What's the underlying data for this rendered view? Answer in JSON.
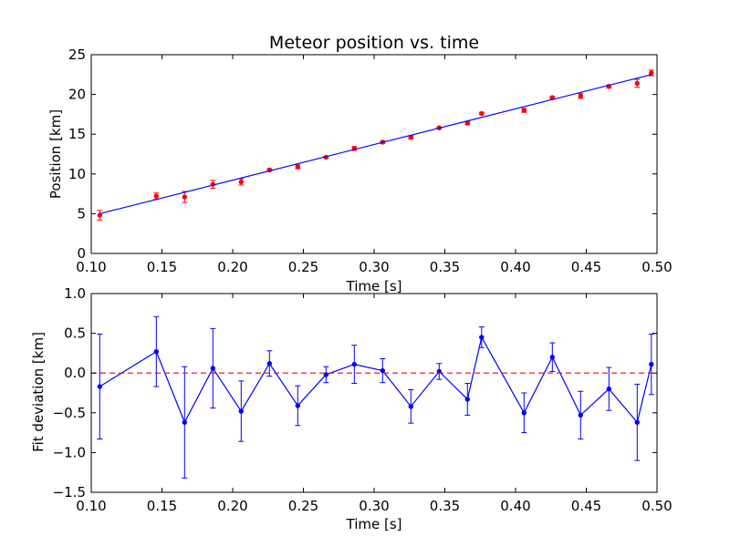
{
  "chart_data": [
    {
      "type": "scatter",
      "title": "Meteor position vs. time",
      "xlabel": "Time [s]",
      "ylabel": "Position [km]",
      "xlim": [
        0.1,
        0.5
      ],
      "ylim": [
        0,
        25
      ],
      "xticks": [
        "0.10",
        "0.15",
        "0.20",
        "0.25",
        "0.30",
        "0.35",
        "0.40",
        "0.45",
        "0.50"
      ],
      "yticks": [
        "0",
        "5",
        "10",
        "15",
        "20",
        "25"
      ],
      "grid": false,
      "series": [
        {
          "kind": "errorbar-points",
          "color": "#ff0000",
          "x": [
            0.106,
            0.146,
            0.166,
            0.186,
            0.206,
            0.226,
            0.246,
            0.266,
            0.286,
            0.306,
            0.326,
            0.346,
            0.366,
            0.376,
            0.406,
            0.426,
            0.446,
            0.466,
            0.486,
            0.496
          ],
          "y": [
            4.8,
            7.2,
            7.1,
            8.7,
            9.0,
            10.5,
            10.9,
            12.1,
            13.2,
            14.0,
            14.6,
            15.8,
            16.4,
            17.6,
            18.0,
            19.6,
            19.8,
            21.0,
            21.4,
            22.7
          ],
          "yerr": [
            0.6,
            0.4,
            0.7,
            0.5,
            0.4,
            0.15,
            0.25,
            0.1,
            0.25,
            0.15,
            0.2,
            0.1,
            0.2,
            0.15,
            0.25,
            0.15,
            0.3,
            0.2,
            0.5,
            0.35
          ]
        },
        {
          "kind": "fit-line",
          "color": "#0000ff",
          "x": [
            0.106,
            0.496
          ],
          "y": [
            5.0,
            22.5
          ]
        }
      ]
    },
    {
      "type": "line",
      "xlabel": "Time [s]",
      "ylabel": "Fit deviation [km]",
      "xlim": [
        0.1,
        0.5
      ],
      "ylim": [
        -1.5,
        1.0
      ],
      "xticks": [
        "0.10",
        "0.15",
        "0.20",
        "0.25",
        "0.30",
        "0.35",
        "0.40",
        "0.45",
        "0.50"
      ],
      "yticks": [
        "1.0",
        "0.5",
        "0.0",
        "−0.5",
        "−1.0",
        "−1.5"
      ],
      "grid": false,
      "series": [
        {
          "kind": "errorbar-line",
          "color": "#0000ff",
          "x": [
            0.106,
            0.146,
            0.166,
            0.186,
            0.206,
            0.226,
            0.246,
            0.266,
            0.286,
            0.306,
            0.326,
            0.346,
            0.366,
            0.376,
            0.406,
            0.426,
            0.446,
            0.466,
            0.486,
            0.496
          ],
          "y": [
            -0.17,
            0.27,
            -0.62,
            0.06,
            -0.48,
            0.12,
            -0.41,
            -0.02,
            0.11,
            0.03,
            -0.42,
            0.02,
            -0.33,
            0.45,
            -0.5,
            0.2,
            -0.53,
            -0.2,
            -0.62,
            0.11
          ],
          "yerr": [
            0.66,
            0.44,
            0.7,
            0.5,
            0.38,
            0.16,
            0.25,
            0.1,
            0.24,
            0.15,
            0.21,
            0.1,
            0.2,
            0.13,
            0.25,
            0.18,
            0.3,
            0.27,
            0.48,
            0.38
          ]
        },
        {
          "kind": "zero-line",
          "color": "#ff0000",
          "style": "dashed",
          "y": 0
        }
      ]
    }
  ]
}
